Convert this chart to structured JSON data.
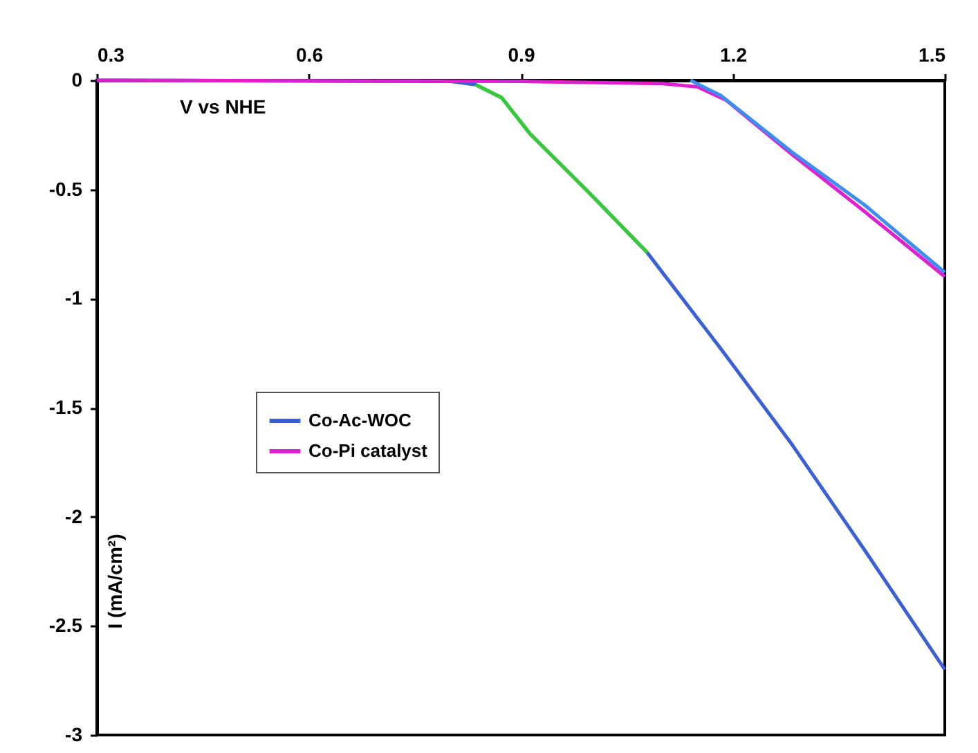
{
  "chart_data": {
    "type": "line",
    "xlabel": "V vs NHE",
    "ylabel": "I (mA/cm²)",
    "xlim": [
      0.3,
      1.5
    ],
    "xticks": [
      0.3,
      0.6,
      0.9,
      1.2,
      1.5
    ],
    "ylim": [
      -3,
      0
    ],
    "yticks": [
      0,
      -0.5,
      -1,
      -1.5,
      -2,
      -2.5,
      -3
    ],
    "legend": "left",
    "grid": false,
    "marker": "none",
    "line_style": "solid",
    "series": [
      {
        "name": "Co-Ac-WOC",
        "color": "#3a5fd6",
        "x": [
          0.3,
          0.8,
          0.836,
          0.873,
          0.913,
          0.995,
          1.079,
          1.183,
          1.284,
          1.386,
          1.5
        ],
        "values": [
          0,
          -0.005,
          -0.02,
          -0.08,
          -0.245,
          -0.51,
          -0.79,
          -1.23,
          -1.67,
          -2.15,
          -2.7
        ]
      },
      {
        "name": "Co-Pi catalyst",
        "color": "#e020d0",
        "x": [
          0.3,
          0.9,
          1.1,
          1.15,
          1.19,
          1.284,
          1.386,
          1.5
        ],
        "values": [
          0,
          -0.005,
          -0.015,
          -0.03,
          -0.09,
          -0.34,
          -0.6,
          -0.9
        ]
      },
      {
        "color": "#3d8ef0",
        "x": [
          1.14,
          1.183,
          1.284,
          1.386,
          1.5
        ],
        "values": [
          0,
          -0.07,
          -0.33,
          -0.57,
          -0.88
        ]
      },
      {
        "color": "#33cc33",
        "x": [
          0.836,
          0.873,
          0.913,
          0.995,
          1.079
        ],
        "values": [
          -0.02,
          -0.08,
          -0.245,
          -0.51,
          -0.79
        ]
      }
    ]
  }
}
